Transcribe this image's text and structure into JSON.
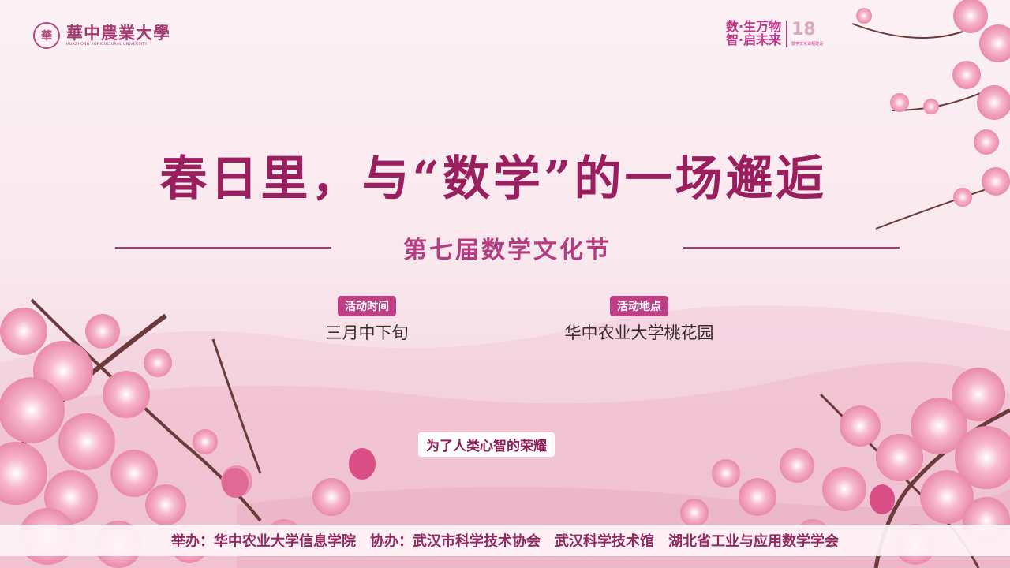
{
  "header": {
    "university_name_cn": "華中農業大學",
    "university_name_en": "HUAZHONG AGRICULTURAL UNIVERSITY",
    "slogan_line1": "数·生万物",
    "slogan_line2": "智·启未来",
    "anniversary_number": "18",
    "anniversary_text": "数学文化课程建设"
  },
  "title": "春日里，与“数学”的一场邂逅",
  "subtitle": "第七届数学文化节",
  "event_time": {
    "label": "活动时间",
    "value": "三月中下旬"
  },
  "event_location": {
    "label": "活动地点",
    "value": "华中农业大学桃花园"
  },
  "motto": "为了人类心智的荣耀",
  "footer": {
    "organizer": "举办：华中农业大学信息学院",
    "co_organizer": "协办：武汉市科学技术协会",
    "co_org_2": "武汉科学技术馆",
    "co_org_3": "湖北省工业与应用数学学会"
  },
  "colors": {
    "title": "#9a1f5e",
    "accent": "#bf3f86",
    "blossom": "#f4a6c0"
  }
}
